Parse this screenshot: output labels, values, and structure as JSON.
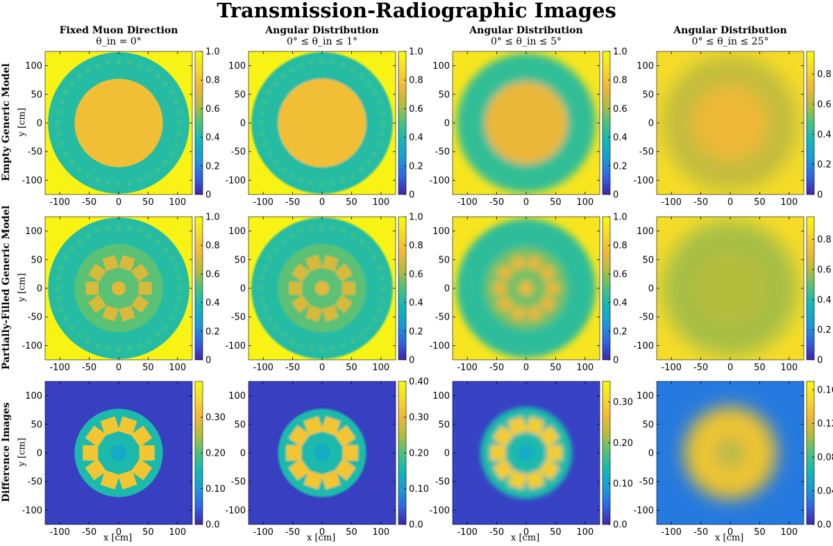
{
  "title": "Transmission-Radiographic Images",
  "columns": [
    {
      "heading": "Fixed Muon Direction",
      "condition": "θ_in = 0°"
    },
    {
      "heading": "Angular Distribution",
      "condition": "0° ≤ θ_in ≤ 1°"
    },
    {
      "heading": "Angular Distribution",
      "condition": "0° ≤ θ_in ≤ 5°"
    },
    {
      "heading": "Angular Distribution",
      "condition": "0° ≤ θ_in ≤ 25°"
    }
  ],
  "rows": [
    "Empty Generic Model",
    "Partially-Filled Generic Model",
    "Difference Images"
  ],
  "axis_labels": {
    "x": "x [cm]",
    "y": "y [cm]"
  },
  "chart_data": {
    "type": "heatmap",
    "x_ticks": [
      -100,
      -50,
      0,
      50,
      100
    ],
    "y_ticks": [
      100,
      50,
      0,
      -50,
      -100
    ],
    "xlim": [
      -125,
      125
    ],
    "ylim": [
      -125,
      125
    ],
    "colormap": [
      "#3e26a8",
      "#2f64e6",
      "#1a9ad6",
      "#11b8b7",
      "#4ac27f",
      "#b2bd3e",
      "#f0b739",
      "#f6d92a",
      "#f9fb0e"
    ],
    "panels": [
      [
        {
          "row": "Empty Generic Model",
          "col": 0,
          "colorbar_ticks": [
            "1.0",
            "0.8",
            "0.6",
            "0.4",
            "0.2",
            "0"
          ],
          "cmax": 1.0,
          "background": 0.97,
          "outer_radius": 120,
          "ring_value": 0.42,
          "inner_radius": 75,
          "inner_value": 0.78,
          "blur": 0,
          "dotted_ring": true
        },
        {
          "row": "Empty Generic Model",
          "col": 1,
          "colorbar_ticks": [
            "1.0",
            "0.8",
            "0.6",
            "0.4",
            "0.2",
            "0"
          ],
          "cmax": 1.0,
          "background": 0.97,
          "outer_radius": 120,
          "ring_value": 0.42,
          "inner_radius": 75,
          "inner_value": 0.78,
          "blur": 1.5,
          "dotted_ring": true
        },
        {
          "row": "Empty Generic Model",
          "col": 2,
          "colorbar_ticks": [
            "1.0",
            "0.8",
            "0.6",
            "0.4",
            "0.2",
            "0"
          ],
          "cmax": 1.0,
          "background": 0.92,
          "outer_radius": 118,
          "ring_value": 0.45,
          "inner_radius": 70,
          "inner_value": 0.74,
          "blur": 7,
          "dotted_ring": false
        },
        {
          "row": "Empty Generic Model",
          "col": 3,
          "colorbar_ticks": [
            "0.8",
            "0.6",
            "0.4",
            "0.2",
            "0"
          ],
          "cmax": 0.95,
          "background": 0.84,
          "outer_radius": 115,
          "ring_value": 0.62,
          "inner_radius": 65,
          "inner_value": 0.72,
          "blur": 16,
          "dotted_ring": false
        }
      ],
      [
        {
          "row": "Partially-Filled Generic Model",
          "col": 0,
          "colorbar_ticks": [
            "1.0",
            "0.8",
            "0.6",
            "0.4",
            "0.2",
            "0"
          ],
          "cmax": 1.0,
          "background": 0.97,
          "outer_radius": 120,
          "ring_value": 0.42,
          "inner_radius": 75,
          "inner_value": 0.52,
          "blur": 0,
          "dotted_ring": true,
          "blocks": true
        },
        {
          "row": "Partially-Filled Generic Model",
          "col": 1,
          "colorbar_ticks": [
            "1.0",
            "0.8",
            "0.6",
            "0.4",
            "0.2",
            "0"
          ],
          "cmax": 1.0,
          "background": 0.97,
          "outer_radius": 120,
          "ring_value": 0.42,
          "inner_radius": 75,
          "inner_value": 0.52,
          "blur": 1.5,
          "dotted_ring": true,
          "blocks": true
        },
        {
          "row": "Partially-Filled Generic Model",
          "col": 2,
          "colorbar_ticks": [
            "1.0",
            "0.8",
            "0.6",
            "0.4",
            "0.2",
            "0"
          ],
          "cmax": 1.0,
          "background": 0.92,
          "outer_radius": 118,
          "ring_value": 0.44,
          "inner_radius": 70,
          "inner_value": 0.55,
          "blur": 6,
          "dotted_ring": false,
          "blocks": true
        },
        {
          "row": "Partially-Filled Generic Model",
          "col": 3,
          "colorbar_ticks": [
            "0.8",
            "0.6",
            "0.4",
            "0.2",
            "0"
          ],
          "cmax": 0.95,
          "background": 0.84,
          "outer_radius": 115,
          "ring_value": 0.58,
          "inner_radius": 65,
          "inner_value": 0.6,
          "blur": 16,
          "dotted_ring": false
        }
      ],
      [
        {
          "row": "Difference Images",
          "col": 0,
          "colorbar_ticks": [
            "0.30",
            "0.20",
            "0.10",
            "0.0"
          ],
          "cmax": 0.4,
          "background": 0.02,
          "disk_radius": 75,
          "disk_value": 0.16,
          "block_value": 0.32,
          "blur": 0
        },
        {
          "row": "Difference Images",
          "col": 1,
          "colorbar_ticks": [
            "0.40",
            "0.30",
            "0.20",
            "0.10",
            "0.0"
          ],
          "cmax": 0.4,
          "background": 0.02,
          "disk_radius": 75,
          "disk_value": 0.16,
          "block_value": 0.32,
          "blur": 1.5
        },
        {
          "row": "Difference Images",
          "col": 2,
          "colorbar_ticks": [
            "0.30",
            "0.20",
            "0.10",
            "0.0"
          ],
          "cmax": 0.35,
          "background": 0.02,
          "disk_radius": 78,
          "disk_value": 0.14,
          "block_value": 0.29,
          "blur": 4
        },
        {
          "row": "Difference Images",
          "col": 3,
          "colorbar_ticks": [
            "0.16",
            "0.12",
            "0.08",
            "0.04",
            "0.0"
          ],
          "cmax": 0.17,
          "background": 0.03,
          "disk_radius": 80,
          "disk_value": 0.12,
          "block_value": 0.14,
          "blur": 14
        }
      ]
    ]
  }
}
